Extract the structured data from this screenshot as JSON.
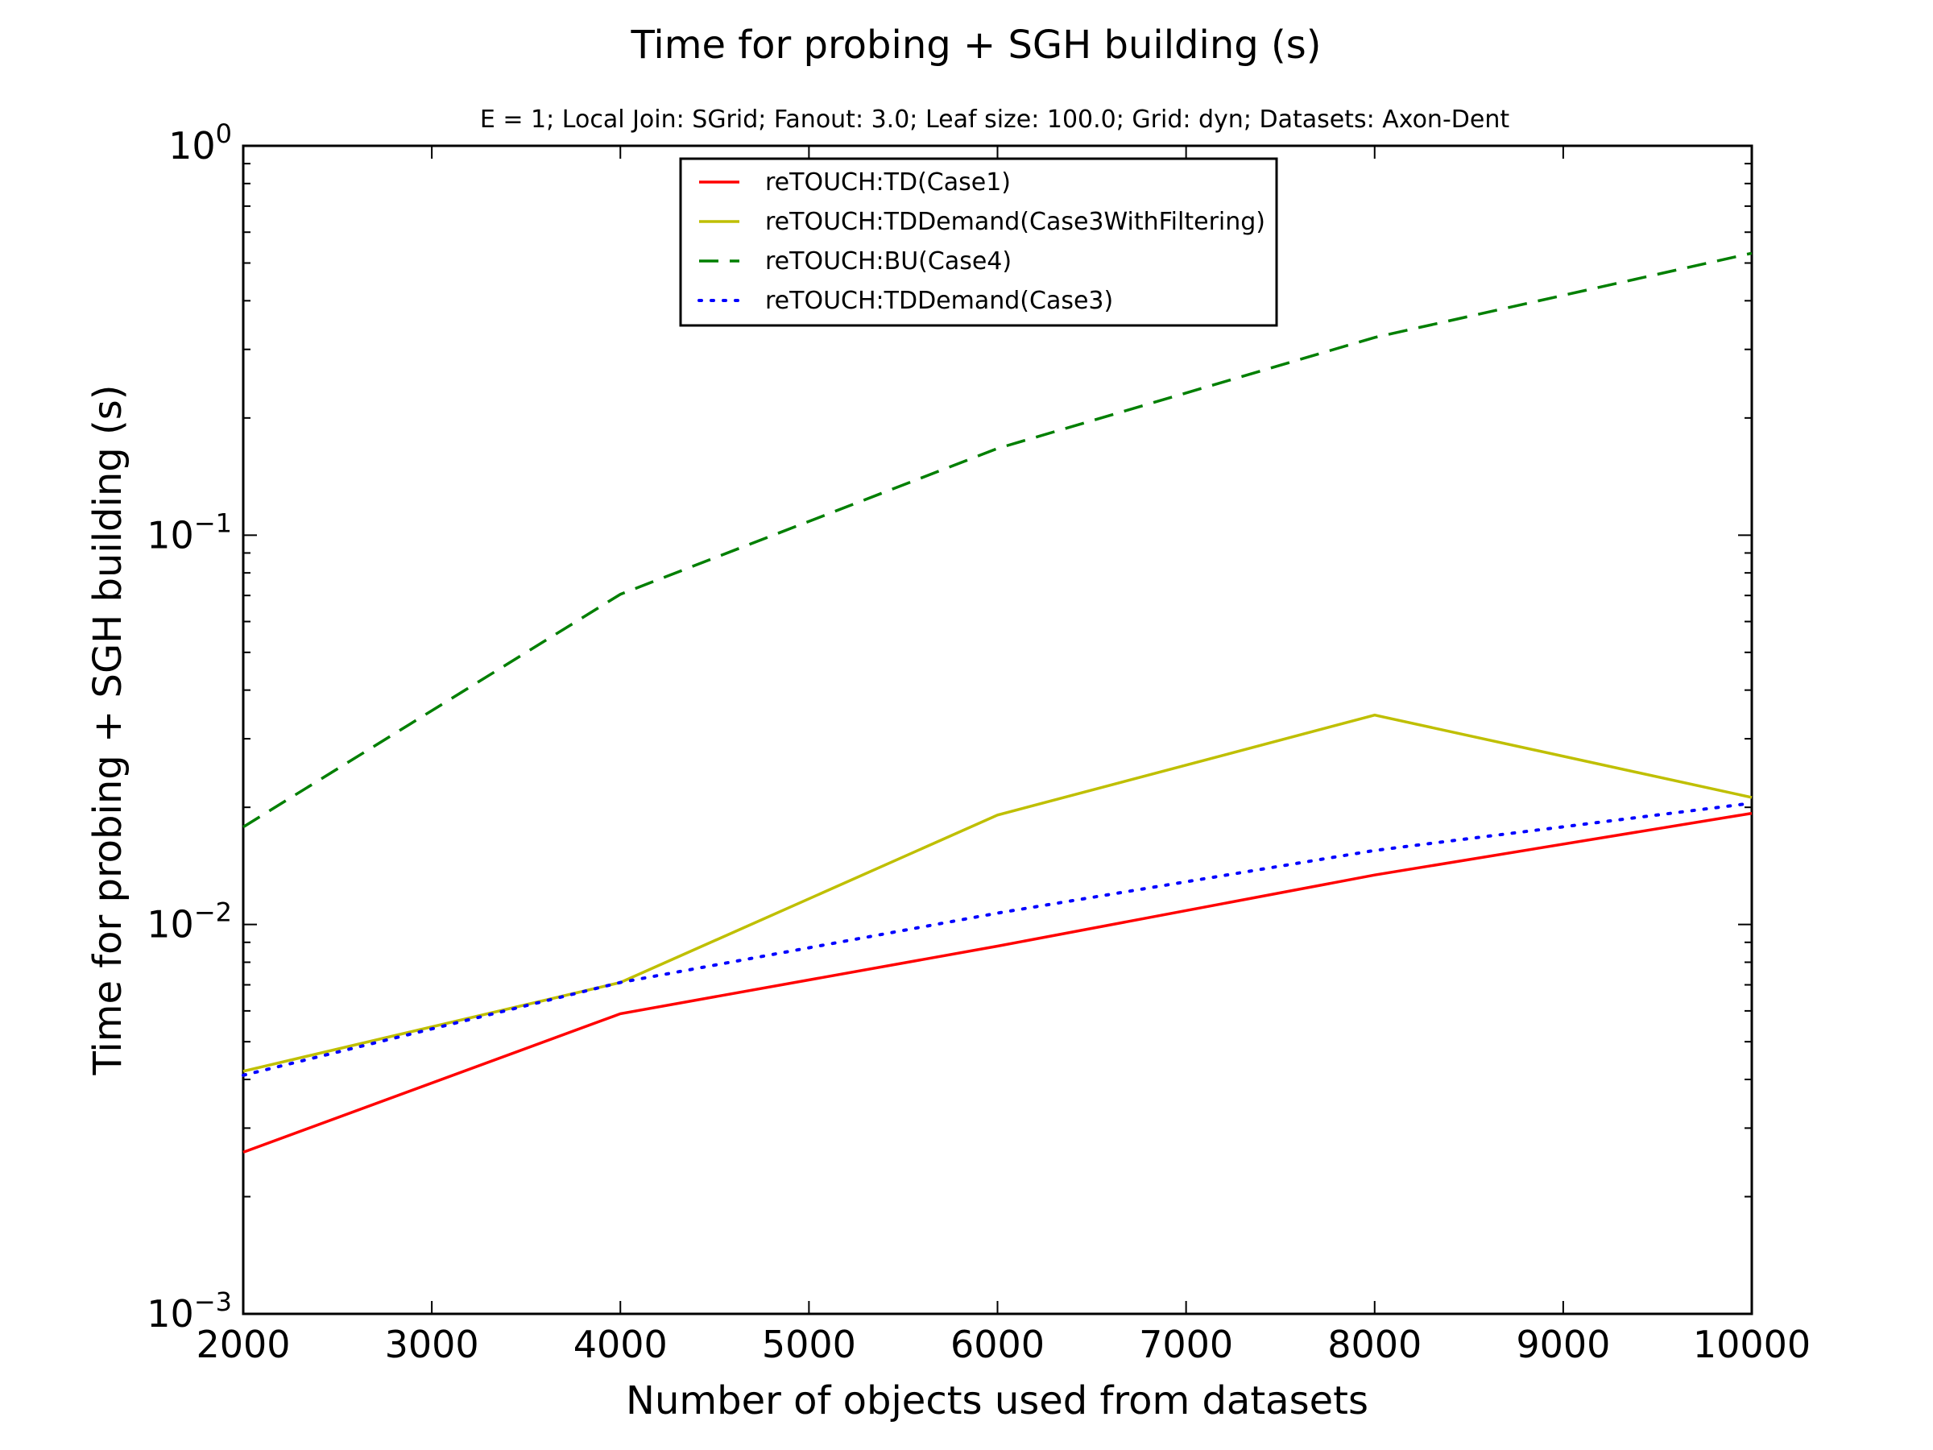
{
  "chart_data": {
    "type": "line",
    "title": "Time for probing + SGH building (s)",
    "subtitle": "E = 1; Local Join: SGrid; Fanout: 3.0; Leaf size: 100.0; Grid: dyn; Datasets: Axon-Dent",
    "xlabel": "Number of objects used from datasets",
    "ylabel": "Time for probing + SGH building (s)",
    "xlim": [
      2000,
      10000
    ],
    "ylim": [
      0.001,
      1
    ],
    "yscale": "log",
    "grid": false,
    "legend_position": "top-center",
    "x_ticks": [
      2000,
      3000,
      4000,
      5000,
      6000,
      7000,
      8000,
      9000,
      10000
    ],
    "x_tick_labels": [
      "2000",
      "3000",
      "4000",
      "5000",
      "6000",
      "7000",
      "8000",
      "9000",
      "10000"
    ],
    "y_ticks": [
      {
        "value": 1,
        "base": "10",
        "exp": "0"
      },
      {
        "value": 0.1,
        "base": "10",
        "exp": "−1"
      },
      {
        "value": 0.01,
        "base": "10",
        "exp": "−2"
      },
      {
        "value": 0.001,
        "base": "10",
        "exp": "−3"
      }
    ],
    "x": [
      2000,
      4000,
      6000,
      8000,
      10000
    ],
    "series": [
      {
        "name": "reTOUCH:TD(Case1)",
        "color": "#ff0000",
        "style": "solid",
        "values": [
          0.0026,
          0.0059,
          0.0088,
          0.0134,
          0.0193
        ]
      },
      {
        "name": "reTOUCH:TDDemand(Case3WithFiltering)",
        "color": "#bfbf00",
        "style": "solid",
        "values": [
          0.0042,
          0.0071,
          0.0191,
          0.0345,
          0.0212
        ]
      },
      {
        "name": "reTOUCH:BU(Case4)",
        "color": "#007f00",
        "style": "dashed",
        "values": [
          0.0178,
          0.0705,
          0.167,
          0.322,
          0.53
        ]
      },
      {
        "name": "reTOUCH:TDDemand(Case3)",
        "color": "#0000ff",
        "style": "dotted",
        "values": [
          0.0041,
          0.0071,
          0.0107,
          0.0155,
          0.0205
        ]
      }
    ]
  }
}
